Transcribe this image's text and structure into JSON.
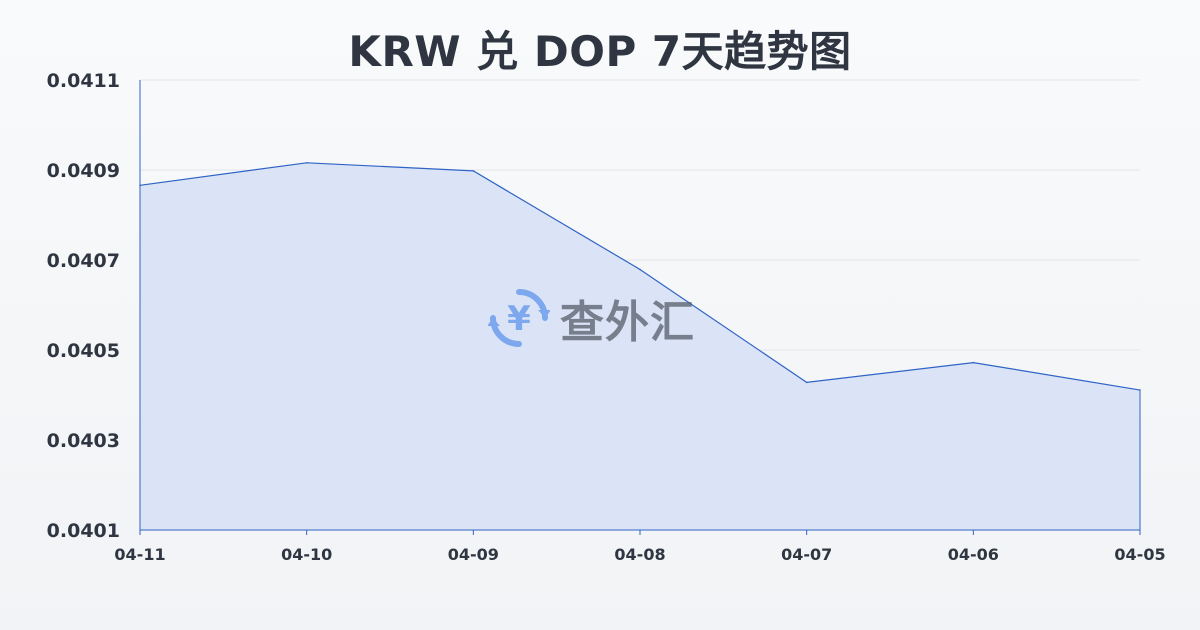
{
  "chart_data": {
    "type": "area",
    "title": "KRW 兑 DOP 7天趋势图",
    "xlabel": "",
    "ylabel": "",
    "categories": [
      "04-11",
      "04-10",
      "04-09",
      "04-08",
      "04-07",
      "04-06",
      "04-05"
    ],
    "series": [
      {
        "values": [
          0.040866,
          0.040916,
          0.040898,
          0.040679,
          0.040428,
          0.040472,
          0.040411
        ]
      }
    ],
    "yticks": [
      "0.0401",
      "0.0403",
      "0.0405",
      "0.0407",
      "0.0409",
      "0.0411"
    ],
    "ylim": [
      0.0403,
      0.0411
    ],
    "grid": true,
    "legend": "none",
    "colors": {
      "line": "#2f63c6",
      "fill": "#d9e3f7",
      "grid": "#e3e6ea",
      "text": "#2f3642"
    }
  },
  "watermark": {
    "icon": "yen-exchange-icon",
    "text": "查外汇"
  }
}
